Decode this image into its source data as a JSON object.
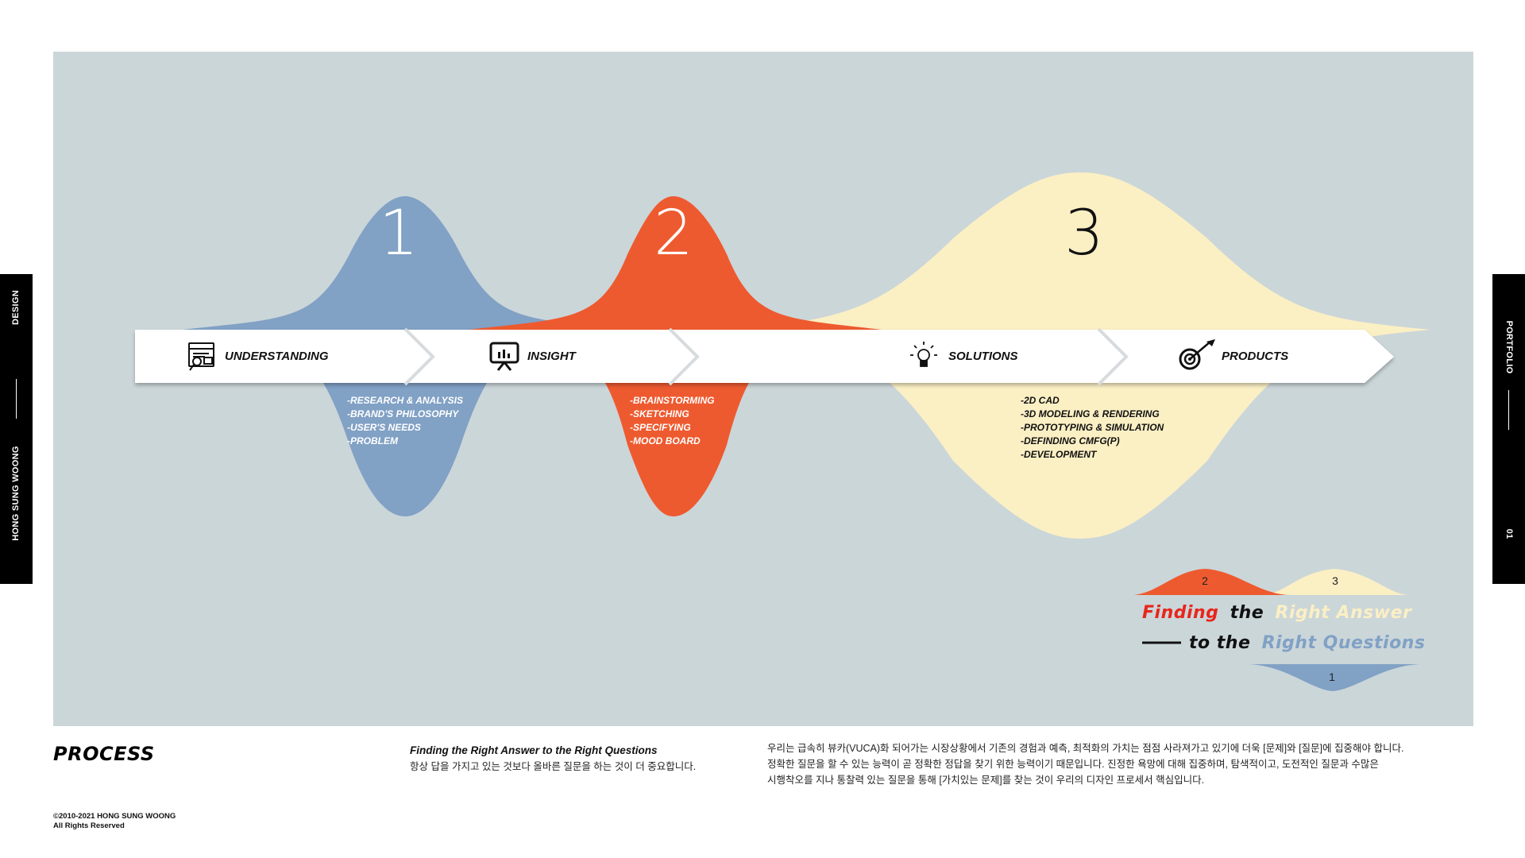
{
  "side_tabs": {
    "left_top": "DESIGN",
    "left_bottom": "HONG SUNG WOONG",
    "right_top": "PORTFOLIO",
    "right_bottom": "01"
  },
  "diagram": {
    "numbers": [
      "1",
      "2",
      "3"
    ],
    "stages": [
      {
        "label": "UNDERSTANDING",
        "icon": "browser-search-icon"
      },
      {
        "label": "INSIGHT",
        "icon": "presentation-board-icon"
      },
      {
        "label": "SOLUTIONS",
        "icon": "lightbulb-icon"
      },
      {
        "label": "PRODUCTS",
        "icon": "target-arrow-icon"
      }
    ],
    "lists": [
      [
        "-RESEARCH & ANALYSIS",
        "-BRAND'S PHILOSOPHY",
        "-USER'S NEEDS",
        "-PROBLEM"
      ],
      [
        "-BRAINSTORMING",
        "-SKETCHING",
        "-SPECIFYING",
        "-MOOD BOARD"
      ],
      [
        "-2D CAD",
        "-3D MODELING & RENDERING",
        "-PROTOTYPING & SIMULATION",
        "-DEFINDING CMFG(P)",
        "-DEVELOPMENT"
      ]
    ],
    "colors": {
      "blue": "#81a1c5",
      "orange": "#ee5a2f",
      "cream": "#fbefc4",
      "background": "#cbd6d9"
    }
  },
  "logo": {
    "numbers": [
      "2",
      "3",
      "1"
    ],
    "line1": {
      "w1": "Finding",
      "w2": "the",
      "w3": "Right Answer"
    },
    "line2": {
      "w1": "to the",
      "w2": "Right Questions"
    }
  },
  "footer": {
    "title": "PROCESS",
    "tagline": "Finding the Right Answer to the Right Questions",
    "tagline_kr": "항상 답을 가지고 있는 것보다 올바른 질문을 하는 것이 더 중요합니다.",
    "body_kr": [
      "우리는 급속히 뷰카(VUCA)화 되어가는 시장상황에서 기존의 경험과 예측, 최적화의 가치는 점점 사라져가고 있기에 더욱 [문제]와 [질문]에 집중해야 합니다.",
      "정확한 질문을 할 수 있는 능력이 곧 정확한 정답을 찾기 위한 능력이기 때문입니다. 진정한 욕망에 대해 집중하며, 탐색적이고, 도전적인 질문과 수많은",
      "시행착오를 지나 통찰력 있는 질문을 통해 [가치있는 문제]를 찾는 것이 우리의 디자인 프로세서 핵심입니다."
    ],
    "copyright": [
      "©2010-2021 HONG SUNG WOONG",
      "All Rights Reserved"
    ]
  }
}
